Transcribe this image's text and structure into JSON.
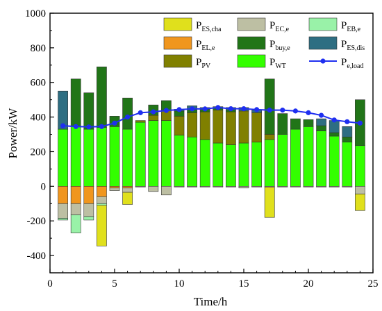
{
  "chart_data": {
    "type": "bar",
    "stacked": true,
    "x": [
      1,
      2,
      3,
      4,
      5,
      6,
      7,
      8,
      9,
      10,
      11,
      12,
      13,
      14,
      15,
      16,
      17,
      18,
      19,
      20,
      21,
      22,
      23,
      24
    ],
    "xlabel": "Time/h",
    "ylabel": "Power/kW",
    "xlim": [
      0,
      25
    ],
    "ylim": [
      -500,
      1000
    ],
    "xticks": [
      0,
      5,
      10,
      15,
      20,
      25
    ],
    "yticks": [
      -400,
      -200,
      0,
      200,
      400,
      600,
      800,
      1000
    ],
    "grid": false,
    "legend_position": "top-right",
    "series": [
      {
        "key": "PWT",
        "name_main": "P",
        "name_sub": "WT",
        "color": "#33ff00",
        "kind": "bar",
        "stack": "positive",
        "values": [
          330,
          345,
          330,
          340,
          345,
          330,
          370,
          380,
          380,
          295,
          285,
          270,
          250,
          240,
          250,
          255,
          270,
          300,
          330,
          345,
          320,
          290,
          255,
          235
        ]
      },
      {
        "key": "PPV",
        "name_main": "P",
        "name_sub": "PV",
        "color": "#808000",
        "kind": "bar",
        "stack": "positive",
        "values": [
          0,
          0,
          0,
          0,
          0,
          0,
          10,
          30,
          60,
          110,
          140,
          160,
          190,
          190,
          185,
          170,
          30,
          0,
          0,
          0,
          0,
          0,
          0,
          0
        ]
      },
      {
        "key": "Pbuy",
        "name_main": "P",
        "name_sub": "buy,e",
        "color": "#217518",
        "kind": "bar",
        "stack": "positive",
        "values": [
          0,
          275,
          210,
          350,
          60,
          180,
          0,
          60,
          55,
          30,
          20,
          15,
          10,
          10,
          0,
          0,
          320,
          120,
          60,
          40,
          30,
          20,
          30,
          265
        ]
      },
      {
        "key": "PESdis",
        "name_main": "P",
        "name_sub": "ES,dis",
        "color": "#2e6e82",
        "kind": "bar",
        "stack": "positive",
        "values": [
          220,
          0,
          0,
          0,
          0,
          0,
          0,
          0,
          0,
          10,
          20,
          10,
          10,
          15,
          20,
          15,
          0,
          0,
          0,
          0,
          40,
          70,
          60,
          0
        ]
      },
      {
        "key": "PEL",
        "name_main": "P",
        "name_sub": "EL,e",
        "color": "#f0961e",
        "kind": "bar",
        "stack": "negative",
        "values": [
          -100,
          -100,
          -100,
          -60,
          -10,
          -10,
          0,
          0,
          0,
          0,
          0,
          0,
          0,
          0,
          0,
          0,
          0,
          0,
          0,
          0,
          0,
          0,
          0,
          0
        ]
      },
      {
        "key": "PEC",
        "name_main": "P",
        "name_sub": "EC,e",
        "color": "#bdbfa3",
        "kind": "bar",
        "stack": "negative",
        "values": [
          -85,
          -65,
          -75,
          -40,
          -15,
          -25,
          -5,
          -30,
          -50,
          -5,
          -5,
          -5,
          -5,
          -5,
          -10,
          -5,
          -5,
          -5,
          -5,
          -5,
          -5,
          -5,
          -5,
          -45
        ]
      },
      {
        "key": "PEB",
        "name_main": "P",
        "name_sub": "EB,e",
        "color": "#99f2a8",
        "kind": "bar",
        "stack": "negative",
        "values": [
          -10,
          -105,
          -20,
          -10,
          0,
          0,
          0,
          0,
          0,
          0,
          0,
          0,
          0,
          0,
          0,
          0,
          0,
          0,
          0,
          0,
          0,
          0,
          0,
          0
        ]
      },
      {
        "key": "PEScha",
        "name_main": "P",
        "name_sub": "ES,cha",
        "color": "#e0e01c",
        "kind": "bar",
        "stack": "negative",
        "values": [
          0,
          0,
          0,
          -235,
          0,
          -70,
          0,
          0,
          0,
          0,
          0,
          0,
          0,
          0,
          0,
          0,
          -175,
          0,
          0,
          0,
          0,
          0,
          0,
          -95
        ]
      },
      {
        "key": "Pload",
        "name_main": "P",
        "name_sub": "e,load",
        "color": "#1f2ff0",
        "kind": "line",
        "values": [
          350,
          345,
          343,
          345,
          365,
          400,
          425,
          430,
          438,
          443,
          447,
          447,
          455,
          448,
          448,
          443,
          440,
          440,
          435,
          425,
          410,
          383,
          373,
          365
        ]
      }
    ],
    "legend_order": [
      "PEScha",
      "PEC",
      "PEB",
      "PEL",
      "Pbuy",
      "PESdis",
      "PPV",
      "PWT",
      "Pload"
    ]
  }
}
